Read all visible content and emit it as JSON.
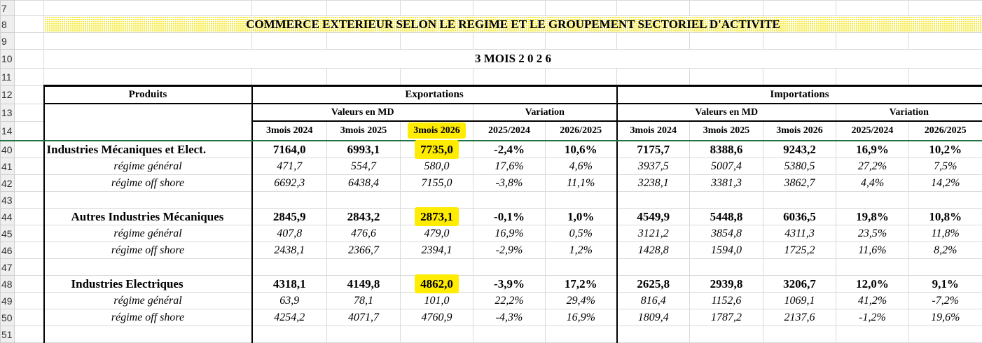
{
  "sheet": {
    "title": "COMMERCE EXTERIEUR SELON LE REGIME ET LE GROUPEMENT SECTORIEL D'ACTIVITE",
    "period": "3  MOIS 2 0 2 6",
    "highlight_color": "#ffec00",
    "freeze_line_color": "#217346"
  },
  "row_numbers": {
    "r7": "7",
    "r8": "8",
    "r9": "9",
    "r10": "10",
    "r11": "11",
    "r12": "12",
    "r13": "13",
    "r14": "14"
  },
  "header": {
    "produits": "Produits",
    "exportations": "Exportations",
    "importations": "Importations",
    "valeurs": "Valeurs en MD",
    "variation": "Variation",
    "columns": [
      "3mois 2024",
      "3mois 2025",
      "3mois 2026",
      "2025/2024",
      "2026/2025",
      "3mois 2024",
      "3mois 2025",
      "3mois 2026",
      "2025/2024",
      "2026/2025"
    ]
  },
  "rows": [
    {
      "rownum": "40",
      "label": "Industries Mécaniques et Elect.",
      "kind": "main",
      "values": [
        "7164,0",
        "6993,1",
        "7735,0",
        "-2,4%",
        "10,6%",
        "7175,7",
        "8388,6",
        "9243,2",
        "16,9%",
        "10,2%"
      ]
    },
    {
      "rownum": "41",
      "label": "régime général",
      "kind": "regime",
      "values": [
        "471,7",
        "554,7",
        "580,0",
        "17,6%",
        "4,6%",
        "3937,5",
        "5007,4",
        "5380,5",
        "27,2%",
        "7,5%"
      ]
    },
    {
      "rownum": "42",
      "label": "régime off shore",
      "kind": "regime",
      "values": [
        "6692,3",
        "6438,4",
        "7155,0",
        "-3,8%",
        "11,1%",
        "3238,1",
        "3381,3",
        "3862,7",
        "4,4%",
        "14,2%"
      ]
    },
    {
      "rownum": "43",
      "label": "",
      "kind": "blank",
      "values": []
    },
    {
      "rownum": "44",
      "label": "Autres Industries Mécaniques",
      "kind": "sub",
      "values": [
        "2845,9",
        "2843,2",
        "2873,1",
        "-0,1%",
        "1,0%",
        "4549,9",
        "5448,8",
        "6036,5",
        "19,8%",
        "10,8%"
      ]
    },
    {
      "rownum": "45",
      "label": "régime général",
      "kind": "regime",
      "values": [
        "407,8",
        "476,6",
        "479,0",
        "16,9%",
        "0,5%",
        "3121,2",
        "3854,8",
        "4311,3",
        "23,5%",
        "11,8%"
      ]
    },
    {
      "rownum": "46",
      "label": "régime off shore",
      "kind": "regime",
      "values": [
        "2438,1",
        "2366,7",
        "2394,1",
        "-2,9%",
        "1,2%",
        "1428,8",
        "1594,0",
        "1725,2",
        "11,6%",
        "8,2%"
      ]
    },
    {
      "rownum": "47",
      "label": "",
      "kind": "blank",
      "values": []
    },
    {
      "rownum": "48",
      "label": "Industries Electriques",
      "kind": "sub",
      "values": [
        "4318,1",
        "4149,8",
        "4862,0",
        "-3,9%",
        "17,2%",
        "2625,8",
        "2939,8",
        "3206,7",
        "12,0%",
        "9,1%"
      ]
    },
    {
      "rownum": "49",
      "label": "régime général",
      "kind": "regime",
      "values": [
        "63,9",
        "78,1",
        "101,0",
        "22,2%",
        "29,4%",
        "816,4",
        "1152,6",
        "1069,1",
        "41,2%",
        "-7,2%"
      ]
    },
    {
      "rownum": "50",
      "label": "régime off shore",
      "kind": "regime",
      "values": [
        "4254,2",
        "4071,7",
        "4760,9",
        "-4,3%",
        "16,9%",
        "1809,4",
        "1787,2",
        "2137,6",
        "-1,2%",
        "19,6%"
      ]
    },
    {
      "rownum": "51",
      "label": "",
      "kind": "blank",
      "values": []
    }
  ]
}
